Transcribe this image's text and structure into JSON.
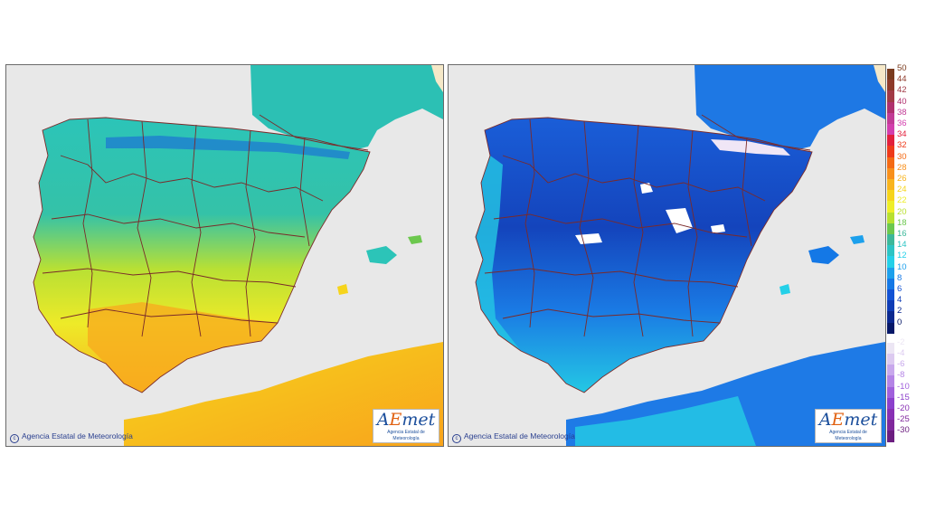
{
  "panels": [
    {
      "copyright": "Agencia Estatal de Meteorología",
      "logo": {
        "a": "A",
        "e": "E",
        "met": "met",
        "subtitle": "Agencia Estatal de Meteorología"
      }
    },
    {
      "copyright": "Agencia Estatal de Meteorología",
      "logo": {
        "a": "A",
        "e": "E",
        "met": "met",
        "subtitle": "Agencia Estatal de Meteorología"
      }
    }
  ],
  "legend": {
    "positive": [
      {
        "label": "50",
        "color": "#7a3b1e"
      },
      {
        "label": "44",
        "color": "#8e3a2a"
      },
      {
        "label": "42",
        "color": "#a23a46"
      },
      {
        "label": "40",
        "color": "#b0306e"
      },
      {
        "label": "38",
        "color": "#c23b96"
      },
      {
        "label": "36",
        "color": "#d33fae"
      },
      {
        "label": "34",
        "color": "#e2203c"
      },
      {
        "label": "32",
        "color": "#ee3a1a"
      },
      {
        "label": "30",
        "color": "#f46a14"
      },
      {
        "label": "28",
        "color": "#f8901c"
      },
      {
        "label": "26",
        "color": "#f8b41e"
      },
      {
        "label": "24",
        "color": "#f6d41c"
      },
      {
        "label": "22",
        "color": "#eeee28"
      },
      {
        "label": "20",
        "color": "#b8e030"
      },
      {
        "label": "18",
        "color": "#6cc84e"
      },
      {
        "label": "16",
        "color": "#3cb89a"
      },
      {
        "label": "14",
        "color": "#2cc4c4"
      },
      {
        "label": "12",
        "color": "#24d0e8"
      },
      {
        "label": "10",
        "color": "#1ca0ec"
      },
      {
        "label": "8",
        "color": "#1478e6"
      },
      {
        "label": "6",
        "color": "#1252d4"
      },
      {
        "label": "4",
        "color": "#0e3cb6"
      },
      {
        "label": "2",
        "color": "#0a2890"
      },
      {
        "label": "0",
        "color": "#061868"
      }
    ],
    "negative": [
      {
        "label": "-2",
        "color": "#ece6f4"
      },
      {
        "label": "-4",
        "color": "#dccaf0"
      },
      {
        "label": "-6",
        "color": "#c8a8ec"
      },
      {
        "label": "-8",
        "color": "#b484e6"
      },
      {
        "label": "-10",
        "color": "#a060dc"
      },
      {
        "label": "-15",
        "color": "#8c40cc"
      },
      {
        "label": "-20",
        "color": "#8830b4"
      },
      {
        "label": "-25",
        "color": "#80289c"
      },
      {
        "label": "-30",
        "color": "#6c1e80"
      }
    ]
  },
  "colors": {
    "sea": "#e8e8e8",
    "france_left": "#2cc0b4",
    "france_right": "#1e78e4",
    "africa_left": "#f6c41c",
    "africa_right": "#1e7ae6",
    "boundaries": "#7a2a2a"
  }
}
